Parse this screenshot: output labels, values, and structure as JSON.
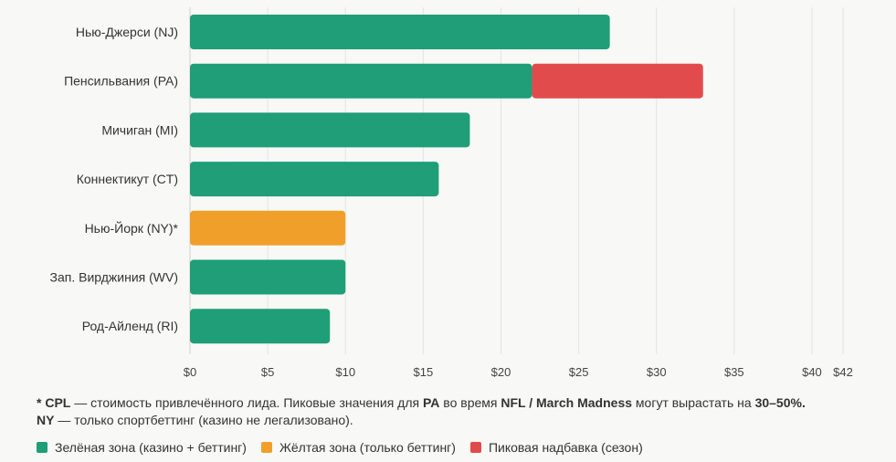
{
  "chart_data": {
    "type": "bar",
    "orientation": "horizontal",
    "stacked": true,
    "categories": [
      "Нью-Джерси (NJ)",
      "Пенсильвания (PA)",
      "Мичиган (MI)",
      "Коннектикут (CT)",
      "Нью-Йорк (NY)*",
      "Зап. Вирджиния (WV)",
      "Род-Айленд (RI)"
    ],
    "series": [
      {
        "name": "Зелёная зона (казино + беттинг)",
        "color": "#1f9e78",
        "values": [
          27,
          22,
          18,
          16,
          0,
          10,
          9
        ]
      },
      {
        "name": "Жёлтая зона (только беттинг)",
        "color": "#f0a02a",
        "values": [
          0,
          0,
          0,
          0,
          10,
          0,
          0
        ]
      },
      {
        "name": "Пиковая надбавка (сезон)",
        "color": "#e24b4b",
        "values": [
          0,
          11,
          0,
          0,
          0,
          0,
          0
        ]
      }
    ],
    "xticks": [
      {
        "value": 0,
        "label": "$0"
      },
      {
        "value": 5,
        "label": "$5"
      },
      {
        "value": 10,
        "label": "$10"
      },
      {
        "value": 15,
        "label": "$15"
      },
      {
        "value": 20,
        "label": "$20"
      },
      {
        "value": 25,
        "label": "$25"
      },
      {
        "value": 30,
        "label": "$30"
      },
      {
        "value": 35,
        "label": "$35"
      },
      {
        "value": 40,
        "label": "$40"
      },
      {
        "value": 42,
        "label": "$42"
      }
    ],
    "xlim": [
      0,
      42
    ],
    "grid": true,
    "legend_position": "bottom-left"
  },
  "note": {
    "line1_parts": [
      {
        "text": "* CPL",
        "bold": true
      },
      {
        "text": " — стоимость привлечённого лида. Пиковые значения для ",
        "bold": false
      },
      {
        "text": "PA",
        "bold": true
      },
      {
        "text": " во время ",
        "bold": false
      },
      {
        "text": "NFL / March Madness",
        "bold": true
      },
      {
        "text": " могут вырастать на ",
        "bold": false
      },
      {
        "text": "30–50%.",
        "bold": true
      }
    ],
    "line2_parts": [
      {
        "text": "NY",
        "bold": true
      },
      {
        "text": " — только спортбеттинг (казино не легализовано).",
        "bold": false
      }
    ]
  }
}
